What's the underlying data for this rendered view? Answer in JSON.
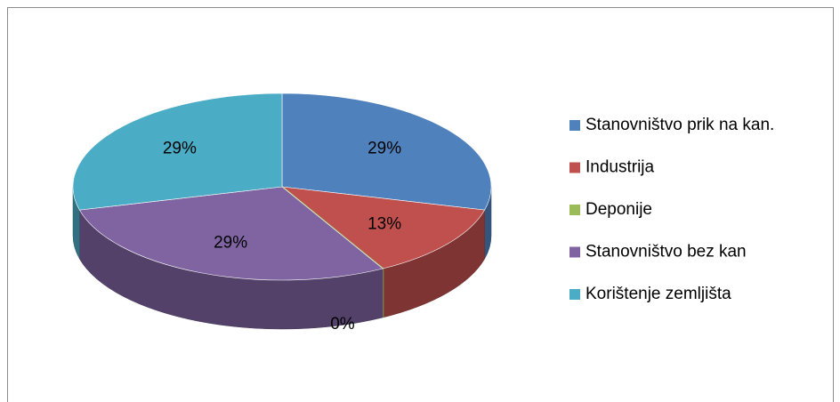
{
  "chart_data": {
    "type": "pie3d",
    "categories": [
      "Stanovništvo prik na kan.",
      "Industrija",
      "Deponije",
      "Stanovništvo bez kan",
      "Korištenje zemljišta"
    ],
    "values": [
      29,
      13,
      0,
      29,
      29
    ],
    "value_labels": [
      "29%",
      "13%",
      "0%",
      "29%",
      "29%"
    ],
    "colors": [
      "#4f81bd",
      "#c0504d",
      "#9bbb59",
      "#8064a2",
      "#4bacc6"
    ],
    "legend": "right"
  }
}
